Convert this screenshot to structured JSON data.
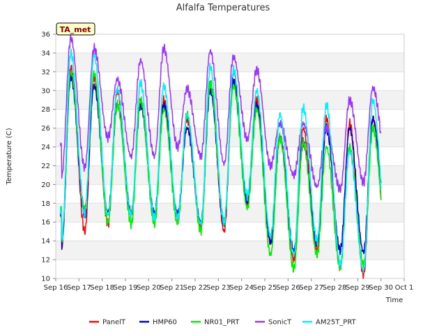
{
  "chart_data": {
    "type": "line",
    "title": "Alfalfa Temperatures",
    "xlabel": "Time",
    "ylabel": "Temperature (C)",
    "badge": "TA_met",
    "ylim": [
      10,
      36
    ],
    "y_ticks": [
      10,
      12,
      14,
      16,
      18,
      20,
      22,
      24,
      26,
      28,
      30,
      32,
      34,
      36
    ],
    "xlim": [
      16,
      31
    ],
    "x_ticks": [
      16,
      17,
      18,
      19,
      20,
      21,
      22,
      23,
      24,
      25,
      26,
      27,
      28,
      29,
      30,
      31
    ],
    "x_tick_labels": [
      "Sep 16",
      "Sep 17",
      "Sep 18",
      "Sep 19",
      "Sep 20",
      "Sep 21",
      "Sep 22",
      "Sep 23",
      "Sep 24",
      "Sep 25",
      "Sep 26",
      "Sep 27",
      "Sep 28",
      "Sep 29",
      "Sep 30",
      "Oct 1"
    ],
    "grid": "horizontal bands",
    "legend_position": "bottom",
    "series": [
      {
        "name": "PanelT",
        "color": "#ff0000",
        "daily_min": [
          13.2,
          15.0,
          15.8,
          16.8,
          16.0,
          16.4,
          15.4,
          15.0,
          18.0,
          14.0,
          12.0,
          13.0,
          11.2,
          10.4,
          14.0
        ],
        "daily_max": [
          32.5,
          31.5,
          30.0,
          29.0,
          29.0,
          27.0,
          31.0,
          32.0,
          29.0,
          25.0,
          26.0,
          27.0,
          26.5,
          27.0
        ]
      },
      {
        "name": "HMP60",
        "color": "#0000cc",
        "daily_min": [
          13.5,
          16.8,
          17.0,
          17.0,
          16.8,
          16.8,
          16.0,
          15.8,
          18.3,
          13.8,
          13.0,
          13.8,
          13.0,
          12.8,
          15.5
        ],
        "daily_max": [
          31.5,
          30.5,
          28.5,
          28.5,
          28.5,
          26.0,
          30.0,
          31.0,
          28.5,
          25.0,
          24.5,
          26.0,
          26.0,
          27.0
        ]
      },
      {
        "name": "NR01_PRT",
        "color": "#00ee00",
        "daily_min": [
          14.0,
          17.5,
          16.0,
          15.8,
          15.8,
          15.8,
          15.0,
          16.0,
          17.5,
          12.5,
          11.0,
          12.5,
          11.0,
          11.5,
          14.0
        ],
        "daily_max": [
          32.0,
          31.8,
          28.5,
          29.0,
          28.0,
          27.5,
          30.8,
          30.5,
          28.0,
          25.0,
          24.5,
          24.0,
          24.0,
          26.0
        ]
      },
      {
        "name": "SonicT",
        "color": "#9933ff",
        "daily_min": [
          20.8,
          21.8,
          25.0,
          23.0,
          23.0,
          24.0,
          23.0,
          22.2,
          24.8,
          22.0,
          21.0,
          19.8,
          19.5,
          20.2,
          22.2
        ],
        "daily_max": [
          35.6,
          34.5,
          31.2,
          33.2,
          34.5,
          30.2,
          34.2,
          33.6,
          32.2,
          26.5,
          26.5,
          26.0,
          29.0,
          30.3
        ]
      },
      {
        "name": "AM25T_PRT",
        "color": "#00eeff",
        "daily_min": [
          13.8,
          16.8,
          16.8,
          16.8,
          16.5,
          16.5,
          15.8,
          16.0,
          18.8,
          14.5,
          12.5,
          14.0,
          11.5,
          10.8,
          14.5
        ],
        "daily_max": [
          34.0,
          33.8,
          30.2,
          30.8,
          30.5,
          27.5,
          32.5,
          32.2,
          30.0,
          27.5,
          28.2,
          28.5,
          23.5,
          29.0
        ]
      }
    ]
  }
}
